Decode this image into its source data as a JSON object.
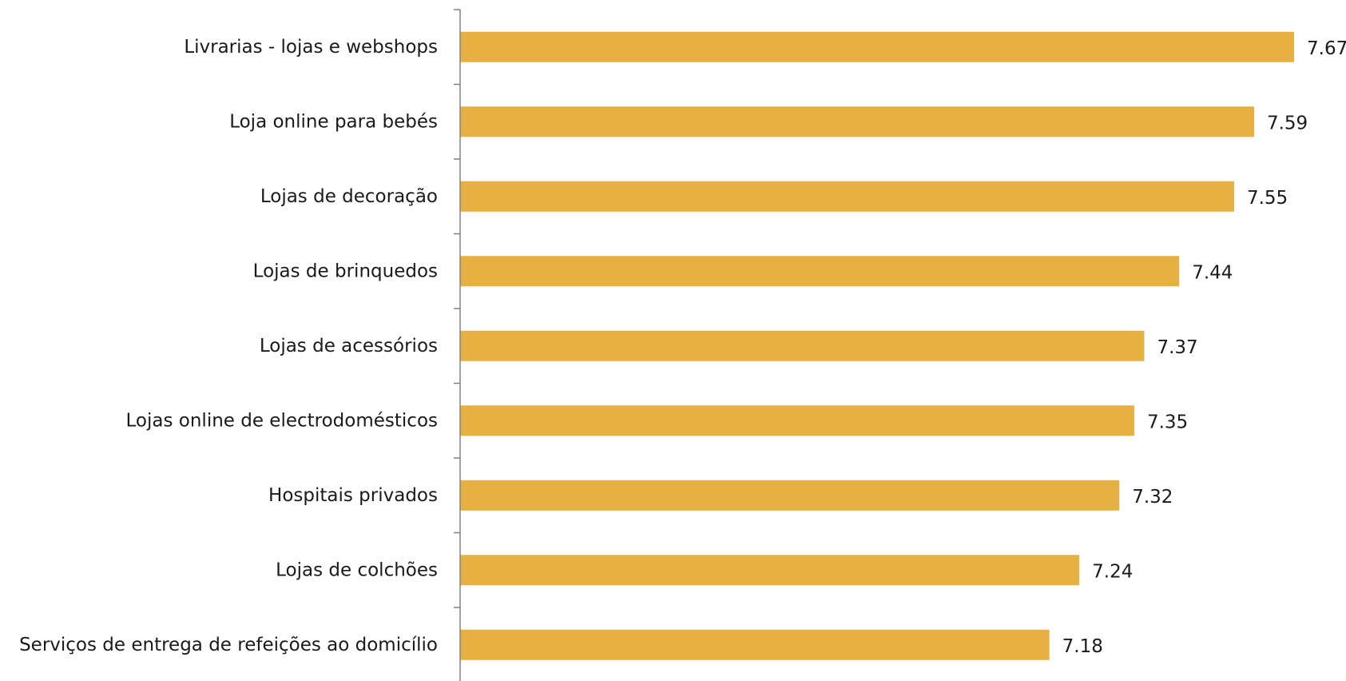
{
  "chart_data": {
    "type": "bar",
    "orientation": "horizontal",
    "categories": [
      "Livrarias - lojas e webshops",
      "Loja online para bebés",
      "Lojas de decoração",
      "Lojas de brinquedos",
      "Lojas de acessórios",
      "Lojas online de electrodomésticos",
      "Hospitais privados",
      "Lojas de colchões",
      "Serviços de entrega de refeições ao domicílio"
    ],
    "values": [
      7.67,
      7.59,
      7.55,
      7.44,
      7.37,
      7.35,
      7.32,
      7.24,
      7.18
    ],
    "value_labels": [
      "7.67",
      "7.59",
      "7.55",
      "7.44",
      "7.37",
      "7.35",
      "7.32",
      "7.24",
      "7.18"
    ],
    "bar_color": "#E6B042",
    "axis_color": "#808080",
    "title": "",
    "xlabel": "",
    "ylabel": "",
    "xlim": [
      6.0,
      7.67
    ],
    "grid": false,
    "legend": "none"
  }
}
